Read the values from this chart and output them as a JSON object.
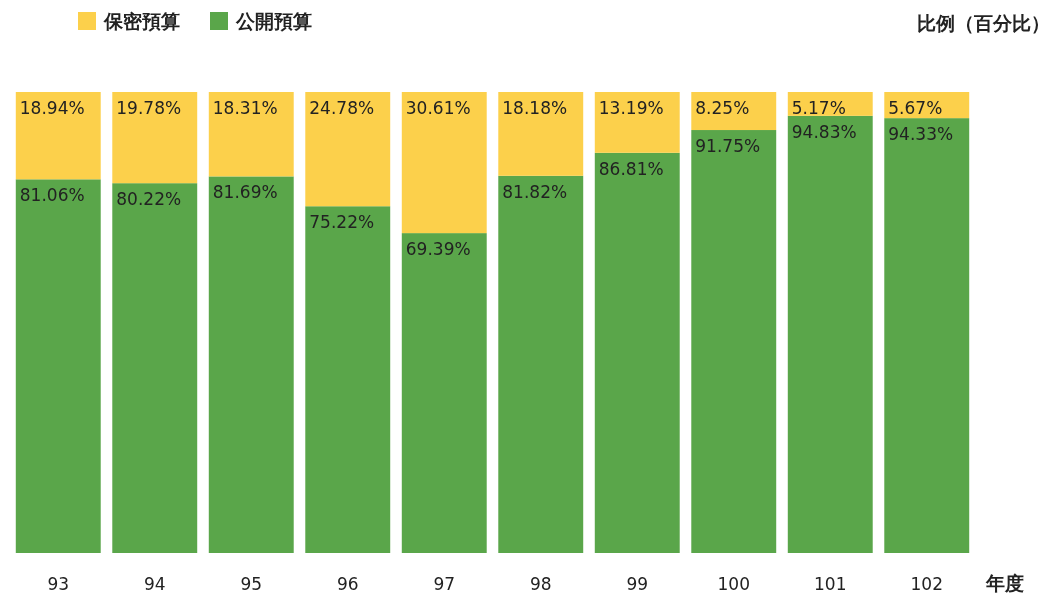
{
  "chart_data": {
    "type": "bar",
    "stacked": true,
    "xlabel": "年度",
    "ylabel": "比例（百分比）",
    "legend": "top left",
    "categories": [
      "93",
      "94",
      "95",
      "96",
      "97",
      "98",
      "99",
      "100",
      "101",
      "102"
    ],
    "series": [
      {
        "name": "公開預算",
        "color": "#5aa64a",
        "values": [
          81.06,
          80.22,
          81.69,
          75.22,
          69.39,
          81.82,
          86.81,
          91.75,
          94.83,
          94.33
        ],
        "value_labels": [
          "81.06%",
          "80.22%",
          "81.69%",
          "75.22%",
          "69.39%",
          "81.82%",
          "86.81%",
          "91.75%",
          "94.83%",
          "94.33%"
        ]
      },
      {
        "name": "保密預算",
        "color": "#fcd04b",
        "values": [
          18.94,
          19.78,
          18.31,
          24.78,
          30.61,
          18.18,
          13.19,
          8.25,
          5.17,
          5.67
        ],
        "value_labels": [
          "18.94%",
          "19.78%",
          "18.31%",
          "24.78%",
          "30.61%",
          "18.18%",
          "13.19%",
          "8.25%",
          "5.17%",
          "5.67%"
        ]
      }
    ]
  }
}
